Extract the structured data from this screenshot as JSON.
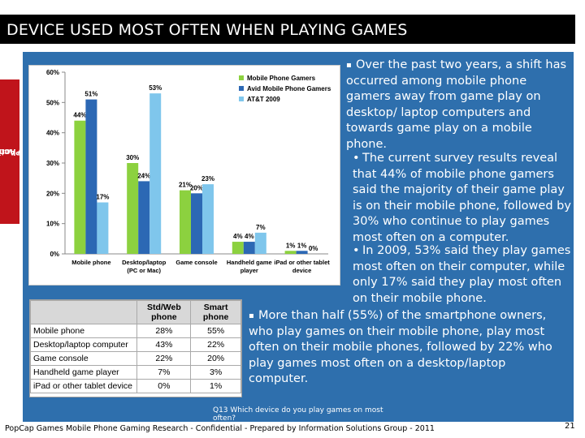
{
  "title": "DEVICE USED MOST OFTEN WHEN PLAYING GAMES",
  "side_label_line1": "Mobile Phone Game",
  "side_label_line2": "Play Activity",
  "colors": {
    "title_bar": "#000000",
    "side_tab": "#c0141b",
    "panel": "#2e6fad",
    "series": [
      "#8cd13f",
      "#2c68b4",
      "#7fc6ec"
    ]
  },
  "chart_data": {
    "type": "bar",
    "categories": [
      [
        "Mobile phone"
      ],
      [
        "Desktop/laptop",
        "(PC or Mac)"
      ],
      [
        "Game console"
      ],
      [
        "Handheld game",
        "player"
      ],
      [
        "iPad or other tablet",
        "device"
      ]
    ],
    "series": [
      {
        "name": "Mobile Phone Gamers",
        "values": [
          44,
          30,
          21,
          4,
          1
        ]
      },
      {
        "name": "Avid Mobile Phone Gamers",
        "values": [
          51,
          24,
          20,
          4,
          1
        ]
      },
      {
        "name": "AT&T 2009",
        "values": [
          17,
          53,
          23,
          7,
          0
        ]
      }
    ],
    "ylim": [
      0,
      60
    ],
    "yticks": [
      "0%",
      "10%",
      "20%",
      "30%",
      "40%",
      "50%",
      "60%"
    ],
    "legend": "top-right",
    "grid": false,
    "value_suffix": "%"
  },
  "bullets": {
    "main": "Over the past two years, a shift has occurred among mobile phone gamers away from game play on desktop/ laptop computers and towards game play on a mobile phone.",
    "sub1": "The current survey results reveal that 44% of mobile phone gamers said the majority of their game play is on their mobile phone, followed by 30% who continue to play games most often on a computer.",
    "sub2": "In 2009, 53% said they play games most often on their computer, while only 17% said they play most often on their mobile phone.",
    "second": "More than half (55%) of the smartphone owners, who play games on their mobile phone, play most often on their mobile phones, followed by 22% who play games most often on a desktop/laptop computer."
  },
  "table": {
    "header_col1": "Std/Web phone",
    "header_col2": "Smart phone",
    "rows": [
      {
        "label": "Mobile phone",
        "std": "28%",
        "smart": "55%"
      },
      {
        "label": "Desktop/laptop computer",
        "std": "43%",
        "smart": "22%"
      },
      {
        "label": "Game console",
        "std": "22%",
        "smart": "20%"
      },
      {
        "label": "Handheld game player",
        "std": "7%",
        "smart": "3%"
      },
      {
        "label": "iPad or other tablet device",
        "std": "0%",
        "smart": "1%"
      }
    ]
  },
  "question": "Q13  Which device do you play games on most often?",
  "footer": "PopCap Games Mobile Phone Gaming Research - Confidential - Prepared by Information Solutions Group - 2011",
  "page_number": "21"
}
